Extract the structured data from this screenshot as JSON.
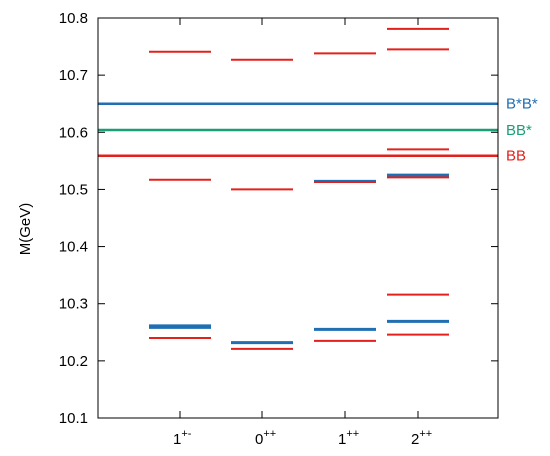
{
  "chart_data": {
    "type": "scatter",
    "title": "",
    "xlabel": "",
    "ylabel": "M(GeV)",
    "ylim": [
      10.1,
      10.8
    ],
    "yticks": [
      "10.1",
      "10.2",
      "10.3",
      "10.4",
      "10.5",
      "10.6",
      "10.7",
      "10.8"
    ],
    "grid": false,
    "categories": [
      {
        "base": "1",
        "sup": "+-"
      },
      {
        "base": "0",
        "sup": "++"
      },
      {
        "base": "1",
        "sup": "++"
      },
      {
        "base": "2",
        "sup": "++"
      }
    ],
    "colors": {
      "red": "#e3211c",
      "blue": "#1f6fb2",
      "green": "#1a9e77"
    },
    "thresholds": [
      {
        "label": "B*B*",
        "value": 10.65,
        "color": "#1f6fb2"
      },
      {
        "label": "BB*",
        "value": 10.604,
        "color": "#1a9e77"
      },
      {
        "label": "BB",
        "value": 10.559,
        "color": "#e3211c"
      }
    ],
    "levels": [
      {
        "category": 0,
        "value": 10.741,
        "color": "#e3211c",
        "weight": "normal"
      },
      {
        "category": 0,
        "value": 10.517,
        "color": "#e3211c",
        "weight": "normal"
      },
      {
        "category": 0,
        "value": 10.26,
        "color": "#1f6fb2",
        "weight": "bold"
      },
      {
        "category": 0,
        "value": 10.24,
        "color": "#e3211c",
        "weight": "normal"
      },
      {
        "category": 1,
        "value": 10.727,
        "color": "#e3211c",
        "weight": "normal"
      },
      {
        "category": 1,
        "value": 10.5,
        "color": "#e3211c",
        "weight": "normal"
      },
      {
        "category": 1,
        "value": 10.232,
        "color": "#1f6fb2",
        "weight": "medium"
      },
      {
        "category": 1,
        "value": 10.221,
        "color": "#e3211c",
        "weight": "normal"
      },
      {
        "category": 2,
        "value": 10.738,
        "color": "#e3211c",
        "weight": "normal"
      },
      {
        "category": 2,
        "value": 10.515,
        "color": "#1f6fb2",
        "weight": "normal"
      },
      {
        "category": 2,
        "value": 10.513,
        "color": "#e3211c",
        "weight": "normal"
      },
      {
        "category": 2,
        "value": 10.255,
        "color": "#1f6fb2",
        "weight": "medium"
      },
      {
        "category": 2,
        "value": 10.235,
        "color": "#e3211c",
        "weight": "normal"
      },
      {
        "category": 3,
        "value": 10.781,
        "color": "#e3211c",
        "weight": "normal"
      },
      {
        "category": 3,
        "value": 10.745,
        "color": "#e3211c",
        "weight": "normal"
      },
      {
        "category": 3,
        "value": 10.57,
        "color": "#e3211c",
        "weight": "normal"
      },
      {
        "category": 3,
        "value": 10.525,
        "color": "#1f6fb2",
        "weight": "medium"
      },
      {
        "category": 3,
        "value": 10.521,
        "color": "#e3211c",
        "weight": "normal"
      },
      {
        "category": 3,
        "value": 10.316,
        "color": "#e3211c",
        "weight": "normal"
      },
      {
        "category": 3,
        "value": 10.269,
        "color": "#1f6fb2",
        "weight": "medium"
      },
      {
        "category": 3,
        "value": 10.246,
        "color": "#e3211c",
        "weight": "normal"
      }
    ]
  }
}
